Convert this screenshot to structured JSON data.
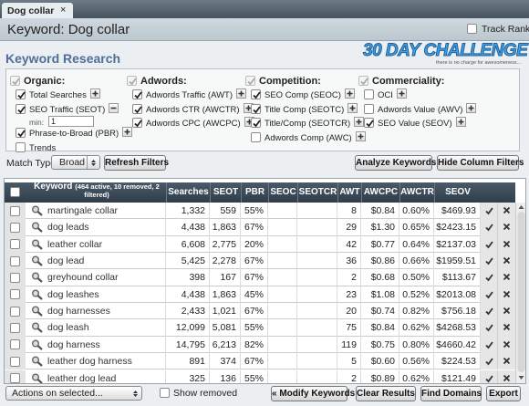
{
  "tab": {
    "label": "Dog collar",
    "close": "×"
  },
  "header": {
    "title": "Keyword: Dog collar",
    "track_rank": "Track Rank"
  },
  "section": {
    "title": "Keyword Research"
  },
  "logo": {
    "title": "30 DAY CHALLENGE",
    "tagline": "there is no charge for awesomeness..."
  },
  "filters": [
    {
      "group": "Organic:",
      "checked": true,
      "items": [
        {
          "label": "Total Searches",
          "checked": true,
          "toggle": "plus"
        },
        {
          "label": "SEO Traffic (SEOT)",
          "checked": true,
          "toggle": "minus",
          "min_label": "min:",
          "min_value": "1"
        },
        {
          "label": "Phrase-to-Broad (PBR)",
          "checked": true,
          "toggle": "plus"
        },
        {
          "label": "Trends",
          "checked": false
        }
      ]
    },
    {
      "group": "Adwords:",
      "checked": true,
      "items": [
        {
          "label": "Adwords Traffic (AWT)",
          "checked": true,
          "toggle": "plus"
        },
        {
          "label": "Adwords CTR (AWCTR)",
          "checked": true,
          "toggle": "plus"
        },
        {
          "label": "Adwords CPC (AWCPC)",
          "checked": true,
          "toggle": "plus"
        }
      ]
    },
    {
      "group": "Competition:",
      "checked": true,
      "items": [
        {
          "label": "SEO Comp (SEOC)",
          "checked": true,
          "toggle": "plus"
        },
        {
          "label": "Title Comp (SEOTC)",
          "checked": true,
          "toggle": "plus"
        },
        {
          "label": "Title/Comp (SEOTCR)",
          "checked": true,
          "toggle": "plus"
        },
        {
          "label": "Adwords Comp (AWC)",
          "checked": false,
          "toggle": "plus"
        }
      ]
    },
    {
      "group": "Commerciality:",
      "checked": true,
      "items": [
        {
          "label": "OCI",
          "checked": false,
          "toggle": "plus"
        },
        {
          "label": "Adwords Value (AWV)",
          "checked": false,
          "toggle": "plus"
        },
        {
          "label": "SEO Value (SEOV)",
          "checked": true,
          "toggle": "plus"
        }
      ]
    }
  ],
  "match_type": {
    "label": "Match Type:",
    "value": "Broad"
  },
  "buttons": {
    "refresh": "Refresh Filters",
    "analyze": "Analyze Keywords",
    "hide": "Hide Column Filters"
  },
  "table": {
    "keyword_header": {
      "title": "Keyword",
      "note": "(464 active, 10 removed, 2 filtered)"
    },
    "columns": [
      "Searches",
      "SEOT",
      "PBR",
      "SEOC",
      "SEOTCR",
      "AWT",
      "AWCPC",
      "AWCTR",
      "SEOV"
    ],
    "rows": [
      [
        "martingale collar",
        "1,332",
        "559",
        "55%",
        null,
        null,
        "8",
        "$0.84",
        "0.60%",
        "$469.93"
      ],
      [
        "dog leads",
        "4,438",
        "1,863",
        "67%",
        null,
        null,
        "29",
        "$1.30",
        "0.65%",
        "$2423.15"
      ],
      [
        "leather collar",
        "6,608",
        "2,775",
        "20%",
        null,
        null,
        "42",
        "$0.77",
        "0.64%",
        "$2137.03"
      ],
      [
        "dog lead",
        "5,425",
        "2,278",
        "67%",
        null,
        null,
        "36",
        "$0.86",
        "0.66%",
        "$1959.51"
      ],
      [
        "greyhound collar",
        "398",
        "167",
        "67%",
        null,
        null,
        "2",
        "$0.68",
        "0.50%",
        "$113.67"
      ],
      [
        "dog leashes",
        "4,438",
        "1,863",
        "45%",
        null,
        null,
        "23",
        "$1.08",
        "0.52%",
        "$2013.08"
      ],
      [
        "dog harnesses",
        "2,433",
        "1,021",
        "67%",
        null,
        null,
        "20",
        "$0.74",
        "0.82%",
        "$756.18"
      ],
      [
        "dog leash",
        "12,099",
        "5,081",
        "55%",
        null,
        null,
        "75",
        "$0.84",
        "0.62%",
        "$4268.53"
      ],
      [
        "dog harness",
        "14,795",
        "6,213",
        "82%",
        null,
        null,
        "119",
        "$0.75",
        "0.80%",
        "$4660.42"
      ],
      [
        "leather dog harness",
        "891",
        "374",
        "67%",
        null,
        null,
        "5",
        "$0.60",
        "0.56%",
        "$224.53"
      ],
      [
        "leather dog lead",
        "325",
        "136",
        "55%",
        null,
        null,
        "2",
        "$0.89",
        "0.62%",
        "$121.49"
      ]
    ]
  },
  "footer": {
    "actions": "Actions on selected...",
    "show_removed": "Show removed",
    "buttons": [
      "« Modify Keywords",
      "Clear Results",
      "Find Domains",
      "Export"
    ]
  }
}
